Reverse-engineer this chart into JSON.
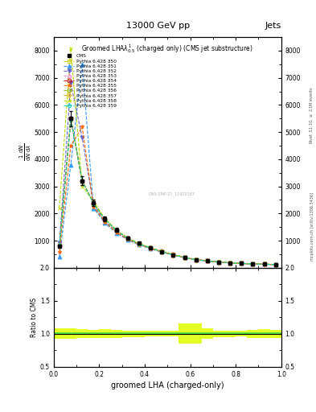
{
  "title_top": "13000 GeV pp",
  "title_right": "Jets",
  "plot_title": "Groomed LHA$\\lambda^{1}_{0.5}$ (charged only) (CMS jet substructure)",
  "xlabel": "groomed LHA (charged-only)",
  "ylabel_main": "$\\frac{1}{\\mathrm{d}N}\\frac{\\mathrm{d}N}{\\mathrm{d}\\lambda}$",
  "ylabel_ratio": "Ratio to CMS",
  "right_label_top": "Rivet 3.1.10, $\\geq$ 2.1M events",
  "right_label_bottom": "mcplots.cern.ch [arXiv:1306.3436]",
  "xlim": [
    0,
    1
  ],
  "ylim_main": [
    0,
    8500
  ],
  "ylim_ratio": [
    0.5,
    2.0
  ],
  "yticks_main": [
    1000,
    2000,
    3000,
    4000,
    5000,
    6000,
    7000,
    8000
  ],
  "yticks_ratio": [
    0.5,
    1.0,
    1.5,
    2.0
  ],
  "cms_data_x": [
    0.025,
    0.075,
    0.125,
    0.175,
    0.225,
    0.275,
    0.325,
    0.375,
    0.425,
    0.475,
    0.525,
    0.575,
    0.625,
    0.675,
    0.725,
    0.775,
    0.825,
    0.875,
    0.925,
    0.975
  ],
  "cms_data_y": [
    800,
    5500,
    3200,
    2400,
    1800,
    1400,
    1100,
    900,
    750,
    600,
    480,
    380,
    300,
    250,
    210,
    180,
    160,
    140,
    130,
    120
  ],
  "cms_data_yerr": [
    40,
    280,
    160,
    120,
    90,
    70,
    55,
    45,
    38,
    30,
    24,
    19,
    15,
    13,
    11,
    9,
    8,
    7,
    7,
    6
  ],
  "series": [
    {
      "label": "Pythia 6.428 350",
      "color": "#cccc00",
      "linestyle": "--",
      "marker": "s",
      "markerfacecolor": "none",
      "x": [
        0.025,
        0.075,
        0.125,
        0.175,
        0.225,
        0.275,
        0.325,
        0.375,
        0.425,
        0.475,
        0.525,
        0.575,
        0.625,
        0.675,
        0.725,
        0.775,
        0.825,
        0.875,
        0.925,
        0.975
      ],
      "y": [
        820,
        5500,
        3200,
        2380,
        1790,
        1390,
        1090,
        890,
        735,
        605,
        485,
        385,
        305,
        255,
        215,
        185,
        162,
        143,
        132,
        123
      ]
    },
    {
      "label": "Pythia 6.428 351",
      "color": "#3399ff",
      "linestyle": "--",
      "marker": "^",
      "markerfacecolor": "#3399ff",
      "x": [
        0.025,
        0.075,
        0.125,
        0.175,
        0.225,
        0.275,
        0.325,
        0.375,
        0.425,
        0.475,
        0.525,
        0.575,
        0.625,
        0.675,
        0.725,
        0.775,
        0.825,
        0.875,
        0.925,
        0.975
      ],
      "y": [
        400,
        3800,
        7500,
        2200,
        1650,
        1280,
        1030,
        845,
        700,
        575,
        465,
        370,
        295,
        248,
        208,
        179,
        158,
        140,
        129,
        120
      ]
    },
    {
      "label": "Pythia 6.428 352",
      "color": "#6666cc",
      "linestyle": "--",
      "marker": "v",
      "markerfacecolor": "#6666cc",
      "x": [
        0.025,
        0.075,
        0.125,
        0.175,
        0.225,
        0.275,
        0.325,
        0.375,
        0.425,
        0.475,
        0.525,
        0.575,
        0.625,
        0.675,
        0.725,
        0.775,
        0.825,
        0.875,
        0.925,
        0.975
      ],
      "y": [
        900,
        6800,
        4800,
        2300,
        1710,
        1320,
        1060,
        870,
        720,
        592,
        475,
        378,
        300,
        252,
        212,
        182,
        160,
        142,
        131,
        122
      ]
    },
    {
      "label": "Pythia 6.428 353",
      "color": "#ff88cc",
      "linestyle": "--",
      "marker": "^",
      "markerfacecolor": "none",
      "x": [
        0.025,
        0.075,
        0.125,
        0.175,
        0.225,
        0.275,
        0.325,
        0.375,
        0.425,
        0.475,
        0.525,
        0.575,
        0.625,
        0.675,
        0.725,
        0.775,
        0.825,
        0.875,
        0.925,
        0.975
      ],
      "y": [
        815,
        5490,
        3200,
        2375,
        1785,
        1385,
        1085,
        887,
        732,
        602,
        483,
        383,
        303,
        253,
        213,
        183,
        161,
        142,
        131,
        122
      ]
    },
    {
      "label": "Pythia 6.428 354",
      "color": "#cc0000",
      "linestyle": "--",
      "marker": "o",
      "markerfacecolor": "none",
      "x": [
        0.025,
        0.075,
        0.125,
        0.175,
        0.225,
        0.275,
        0.325,
        0.375,
        0.425,
        0.475,
        0.525,
        0.575,
        0.625,
        0.675,
        0.725,
        0.775,
        0.825,
        0.875,
        0.925,
        0.975
      ],
      "y": [
        818,
        5495,
        3205,
        2378,
        1788,
        1388,
        1088,
        888,
        734,
        604,
        484,
        384,
        304,
        254,
        214,
        184,
        162,
        143,
        132,
        123
      ]
    },
    {
      "label": "Pythia 6.428 355",
      "color": "#ff6600",
      "linestyle": "--",
      "marker": "*",
      "markerfacecolor": "#ff6600",
      "x": [
        0.025,
        0.075,
        0.125,
        0.175,
        0.225,
        0.275,
        0.325,
        0.375,
        0.425,
        0.475,
        0.525,
        0.575,
        0.625,
        0.675,
        0.725,
        0.775,
        0.825,
        0.875,
        0.925,
        0.975
      ],
      "y": [
        600,
        4500,
        5200,
        2250,
        1695,
        1310,
        1050,
        860,
        712,
        585,
        470,
        374,
        297,
        250,
        210,
        181,
        159,
        141,
        130,
        121
      ]
    },
    {
      "label": "Pythia 6.428 356",
      "color": "#99bb00",
      "linestyle": "--",
      "marker": "s",
      "markerfacecolor": "none",
      "x": [
        0.025,
        0.075,
        0.125,
        0.175,
        0.225,
        0.275,
        0.325,
        0.375,
        0.425,
        0.475,
        0.525,
        0.575,
        0.625,
        0.675,
        0.725,
        0.775,
        0.825,
        0.875,
        0.925,
        0.975
      ],
      "y": [
        816,
        5492,
        3202,
        2376,
        1786,
        1386,
        1086,
        886,
        732,
        602,
        483,
        383,
        303,
        253,
        213,
        183,
        161,
        142,
        131,
        122
      ]
    },
    {
      "label": "Pythia 6.428 357",
      "color": "#ddaa00",
      "linestyle": "--",
      "marker": "d",
      "markerfacecolor": "none",
      "x": [
        0.025,
        0.075,
        0.125,
        0.175,
        0.225,
        0.275,
        0.325,
        0.375,
        0.425,
        0.475,
        0.525,
        0.575,
        0.625,
        0.675,
        0.725,
        0.775,
        0.825,
        0.875,
        0.925,
        0.975
      ],
      "y": [
        812,
        5485,
        3198,
        2372,
        1782,
        1382,
        1082,
        882,
        729,
        599,
        481,
        381,
        301,
        251,
        211,
        181,
        160,
        141,
        130,
        121
      ]
    },
    {
      "label": "Pythia 6.428 358",
      "color": "#bbdd00",
      "linestyle": "--",
      "marker": "x",
      "markerfacecolor": "#bbdd00",
      "x": [
        0.025,
        0.075,
        0.125,
        0.175,
        0.225,
        0.275,
        0.325,
        0.375,
        0.425,
        0.475,
        0.525,
        0.575,
        0.625,
        0.675,
        0.725,
        0.775,
        0.825,
        0.875,
        0.925,
        0.975
      ],
      "y": [
        2200,
        8100,
        3000,
        2450,
        1820,
        1400,
        1100,
        900,
        745,
        612,
        490,
        390,
        309,
        259,
        218,
        187,
        165,
        146,
        134,
        125
      ]
    },
    {
      "label": "Pythia 6.428 359",
      "color": "#00ccbb",
      "linestyle": "--",
      "marker": "p",
      "markerfacecolor": "none",
      "x": [
        0.025,
        0.075,
        0.125,
        0.175,
        0.225,
        0.275,
        0.325,
        0.375,
        0.425,
        0.475,
        0.525,
        0.575,
        0.625,
        0.675,
        0.725,
        0.775,
        0.825,
        0.875,
        0.925,
        0.975
      ],
      "y": [
        810,
        5480,
        3195,
        2370,
        1780,
        1380,
        1080,
        880,
        727,
        597,
        479,
        380,
        300,
        250,
        210,
        180,
        159,
        140,
        129,
        120
      ]
    }
  ],
  "ratio_yellow_band_x": [
    0.0,
    0.05,
    0.1,
    0.15,
    0.2,
    0.25,
    0.3,
    0.35,
    0.4,
    0.45,
    0.5,
    0.55,
    0.6,
    0.65,
    0.7,
    0.75,
    0.8,
    0.85,
    0.9,
    0.95,
    1.0
  ],
  "ratio_yellow_band_low": [
    0.92,
    0.92,
    0.93,
    0.94,
    0.93,
    0.94,
    0.95,
    0.95,
    0.96,
    0.96,
    0.96,
    0.85,
    0.85,
    0.92,
    0.95,
    0.95,
    0.96,
    0.94,
    0.93,
    0.94,
    0.93
  ],
  "ratio_yellow_band_high": [
    1.08,
    1.08,
    1.07,
    1.06,
    1.07,
    1.06,
    1.05,
    1.05,
    1.04,
    1.04,
    1.04,
    1.15,
    1.15,
    1.08,
    1.05,
    1.05,
    1.04,
    1.06,
    1.07,
    1.06,
    1.07
  ],
  "ratio_green_low": 0.98,
  "ratio_green_high": 1.02,
  "watermark": "CMS-SMP-21_11920187",
  "background_color": "#ffffff"
}
